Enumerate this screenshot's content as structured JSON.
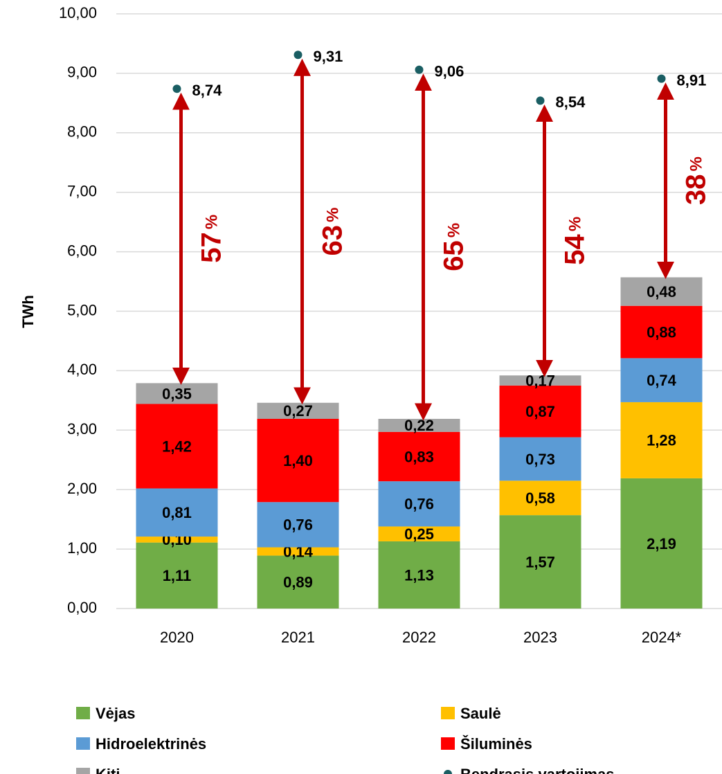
{
  "chart_data": {
    "type": "bar",
    "stacked": true,
    "y_axis_label": "TWh",
    "categories": [
      "2020",
      "2021",
      "2022",
      "2023",
      "2024*"
    ],
    "series": [
      {
        "name": "Vėjas",
        "type": "bar",
        "color": "#70ad47",
        "values": [
          1.11,
          0.89,
          1.13,
          1.57,
          2.19
        ],
        "value_labels": [
          "1,11",
          "0,89",
          "1,13",
          "1,57",
          "2,19"
        ]
      },
      {
        "name": "Saulė",
        "type": "bar",
        "color": "#ffc000",
        "values": [
          0.1,
          0.14,
          0.25,
          0.58,
          1.28
        ],
        "value_labels": [
          "0,10",
          "0,14",
          "0,25",
          "0,58",
          "1,28"
        ]
      },
      {
        "name": "Hidroelektrinės",
        "type": "bar",
        "color": "#5b9bd5",
        "values": [
          0.81,
          0.76,
          0.76,
          0.73,
          0.74
        ],
        "value_labels": [
          "0,81",
          "0,76",
          "0,76",
          "0,73",
          "0,74"
        ]
      },
      {
        "name": "Šiluminės",
        "type": "bar",
        "color": "#ff0000",
        "values": [
          1.42,
          1.4,
          0.83,
          0.87,
          0.88
        ],
        "value_labels": [
          "1,42",
          "1,40",
          "0,83",
          "0,87",
          "0,88"
        ]
      },
      {
        "name": "Kiti",
        "type": "bar",
        "color": "#a5a5a5",
        "values": [
          0.35,
          0.27,
          0.22,
          0.17,
          0.48
        ],
        "value_labels": [
          "0,35",
          "0,27",
          "0,22",
          "0,17",
          "0,48"
        ]
      },
      {
        "name": "Bendrasis vartojimas",
        "type": "scatter",
        "color": "#1a5e63",
        "values": [
          8.74,
          9.31,
          9.06,
          8.54,
          8.91
        ],
        "value_labels": [
          "8,74",
          "9,31",
          "9,06",
          "8,54",
          "8,91"
        ]
      }
    ],
    "gap_percent": [
      57,
      63,
      65,
      54,
      38
    ],
    "gap_unit": "%",
    "gap_color": "#c00000",
    "ylim": [
      0,
      10
    ],
    "yticks": [
      {
        "value": 0,
        "label": "0,00"
      },
      {
        "value": 1,
        "label": "1,00"
      },
      {
        "value": 2,
        "label": "2,00"
      },
      {
        "value": 3,
        "label": "3,00"
      },
      {
        "value": 4,
        "label": "4,00"
      },
      {
        "value": 5,
        "label": "5,00"
      },
      {
        "value": 6,
        "label": "6,00"
      },
      {
        "value": 7,
        "label": "7,00"
      },
      {
        "value": 8,
        "label": "8,00"
      },
      {
        "value": 9,
        "label": "9,00"
      },
      {
        "value": 10,
        "label": "10,00"
      }
    ],
    "grid": true
  }
}
